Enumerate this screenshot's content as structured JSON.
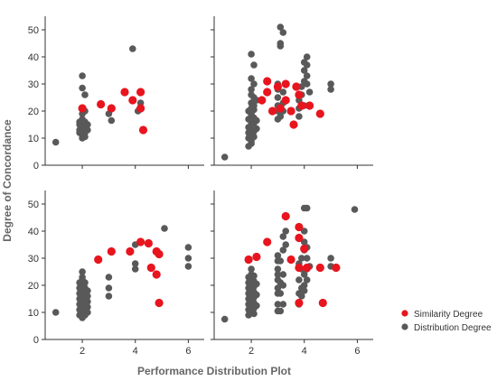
{
  "chart_data": {
    "type": "scatter",
    "xlabel": "Performance Distribution Plot",
    "ylabel": "Degree of Concordance",
    "xlim": [
      0.6,
      6.6
    ],
    "ylim": [
      0,
      55
    ],
    "x_ticks": [
      2,
      4,
      6
    ],
    "y_ticks": [
      0,
      10,
      20,
      30,
      40,
      50
    ],
    "grid": false,
    "legend_position": "right",
    "series_names": [
      "Similarity Degree",
      "Distribution Degree"
    ],
    "series_colors": [
      "#e8141e",
      "#595959"
    ],
    "panels": [
      {
        "row": 0,
        "col": 0,
        "series": [
          {
            "name": "Similarity Degree",
            "points": [
              [
                2.0,
                21
              ],
              [
                2.7,
                22.5
              ],
              [
                3.1,
                21
              ],
              [
                3.6,
                27
              ],
              [
                3.9,
                24
              ],
              [
                4.2,
                27
              ],
              [
                4.2,
                21
              ],
              [
                4.3,
                13
              ]
            ]
          },
          {
            "name": "Distribution Degree",
            "points": [
              [
                1.0,
                8.5
              ],
              [
                1.9,
                12
              ],
              [
                1.9,
                13
              ],
              [
                1.9,
                15
              ],
              [
                1.9,
                16
              ],
              [
                2.0,
                10
              ],
              [
                2.0,
                11
              ],
              [
                2.0,
                12.5
              ],
              [
                2.0,
                14
              ],
              [
                2.0,
                17
              ],
              [
                2.0,
                19
              ],
              [
                2.0,
                28.5
              ],
              [
                2.0,
                33
              ],
              [
                2.1,
                10.5
              ],
              [
                2.1,
                12
              ],
              [
                2.1,
                13.5
              ],
              [
                2.1,
                16
              ],
              [
                2.1,
                20
              ],
              [
                2.1,
                26
              ],
              [
                2.2,
                13
              ],
              [
                2.2,
                15
              ],
              [
                3.0,
                19
              ],
              [
                3.1,
                16.5
              ],
              [
                3.9,
                43
              ],
              [
                4.1,
                20
              ],
              [
                4.2,
                23
              ]
            ]
          }
        ]
      },
      {
        "row": 0,
        "col": 1,
        "series": [
          {
            "name": "Similarity Degree",
            "points": [
              [
                2.4,
                24
              ],
              [
                2.6,
                31
              ],
              [
                2.6,
                27
              ],
              [
                2.8,
                20
              ],
              [
                3.0,
                29
              ],
              [
                3.1,
                21
              ],
              [
                3.3,
                30
              ],
              [
                3.3,
                24
              ],
              [
                3.5,
                20
              ],
              [
                3.6,
                15
              ],
              [
                3.7,
                29
              ],
              [
                3.8,
                26
              ],
              [
                3.9,
                22
              ],
              [
                4.2,
                22
              ],
              [
                4.6,
                19
              ]
            ]
          },
          {
            "name": "Distribution Degree",
            "points": [
              [
                1.0,
                3
              ],
              [
                1.9,
                7
              ],
              [
                1.9,
                10
              ],
              [
                1.9,
                12
              ],
              [
                1.9,
                14
              ],
              [
                1.9,
                17
              ],
              [
                1.9,
                20
              ],
              [
                2.0,
                8
              ],
              [
                2.0,
                9
              ],
              [
                2.0,
                11
              ],
              [
                2.0,
                13
              ],
              [
                2.0,
                15
              ],
              [
                2.0,
                16
              ],
              [
                2.0,
                18
              ],
              [
                2.0,
                19
              ],
              [
                2.0,
                21
              ],
              [
                2.0,
                23
              ],
              [
                2.0,
                26
              ],
              [
                2.0,
                28
              ],
              [
                2.0,
                32
              ],
              [
                2.0,
                41
              ],
              [
                2.1,
                10.5
              ],
              [
                2.1,
                12.5
              ],
              [
                2.1,
                15.5
              ],
              [
                2.1,
                17.5
              ],
              [
                2.1,
                20.5
              ],
              [
                2.1,
                22
              ],
              [
                2.1,
                25
              ],
              [
                2.1,
                30
              ],
              [
                2.1,
                37
              ],
              [
                2.2,
                13.5
              ],
              [
                2.2,
                16.5
              ],
              [
                2.2,
                24
              ],
              [
                3.0,
                17
              ],
              [
                3.0,
                20
              ],
              [
                3.0,
                22
              ],
              [
                3.0,
                25
              ],
              [
                3.0,
                28
              ],
              [
                3.0,
                30
              ],
              [
                3.1,
                18
              ],
              [
                3.1,
                45
              ],
              [
                3.1,
                44
              ],
              [
                3.1,
                51
              ],
              [
                3.2,
                20
              ],
              [
                3.2,
                23
              ],
              [
                3.2,
                27
              ],
              [
                3.2,
                49
              ],
              [
                3.8,
                18
              ],
              [
                3.8,
                21
              ],
              [
                3.8,
                24
              ],
              [
                3.9,
                26
              ],
              [
                3.9,
                29
              ],
              [
                4.0,
                22
              ],
              [
                4.0,
                31
              ],
              [
                4.0,
                35
              ],
              [
                4.0,
                38
              ],
              [
                4.1,
                30
              ],
              [
                4.1,
                33
              ],
              [
                4.1,
                37
              ],
              [
                4.1,
                40
              ],
              [
                4.2,
                27
              ],
              [
                5.0,
                28
              ],
              [
                5.0,
                30
              ]
            ]
          }
        ]
      },
      {
        "row": 1,
        "col": 0,
        "series": [
          {
            "name": "Similarity Degree",
            "points": [
              [
                2.6,
                29.5
              ],
              [
                3.1,
                32.5
              ],
              [
                3.8,
                32.5
              ],
              [
                4.2,
                36
              ],
              [
                4.5,
                35.5
              ],
              [
                4.6,
                26.5
              ],
              [
                4.8,
                32.5
              ],
              [
                4.8,
                24
              ],
              [
                4.9,
                31.5
              ],
              [
                4.9,
                13.5
              ]
            ]
          },
          {
            "name": "Distribution Degree",
            "points": [
              [
                1.0,
                10
              ],
              [
                1.9,
                9
              ],
              [
                1.9,
                11
              ],
              [
                1.9,
                13
              ],
              [
                1.9,
                15
              ],
              [
                1.9,
                17
              ],
              [
                1.9,
                19
              ],
              [
                1.9,
                21
              ],
              [
                2.0,
                8
              ],
              [
                2.0,
                10
              ],
              [
                2.0,
                12
              ],
              [
                2.0,
                14
              ],
              [
                2.0,
                16
              ],
              [
                2.0,
                18
              ],
              [
                2.0,
                20
              ],
              [
                2.0,
                22
              ],
              [
                2.0,
                23
              ],
              [
                2.0,
                25
              ],
              [
                2.1,
                9
              ],
              [
                2.1,
                11
              ],
              [
                2.1,
                13
              ],
              [
                2.1,
                15
              ],
              [
                2.1,
                17
              ],
              [
                2.1,
                19
              ],
              [
                2.1,
                21
              ],
              [
                2.2,
                10
              ],
              [
                2.2,
                12
              ],
              [
                2.2,
                14
              ],
              [
                2.2,
                16
              ],
              [
                2.2,
                18
              ],
              [
                3.0,
                16
              ],
              [
                3.0,
                19
              ],
              [
                3.0,
                23
              ],
              [
                4.0,
                26
              ],
              [
                4.0,
                28
              ],
              [
                4.0,
                35
              ],
              [
                5.1,
                41
              ],
              [
                6.0,
                27
              ],
              [
                6.0,
                30
              ],
              [
                6.0,
                34
              ]
            ]
          }
        ]
      },
      {
        "row": 1,
        "col": 1,
        "series": [
          {
            "name": "Similarity Degree",
            "points": [
              [
                1.9,
                29.5
              ],
              [
                2.2,
                30.5
              ],
              [
                2.6,
                36
              ],
              [
                3.3,
                45.5
              ],
              [
                3.5,
                29.5
              ],
              [
                3.8,
                41.5
              ],
              [
                3.8,
                37.5
              ],
              [
                3.8,
                26.5
              ],
              [
                3.8,
                13.5
              ],
              [
                4.0,
                33.5
              ],
              [
                4.1,
                26.5
              ],
              [
                4.6,
                26.5
              ],
              [
                4.7,
                13.5
              ],
              [
                5.2,
                26.5
              ]
            ]
          },
          {
            "name": "Distribution Degree",
            "points": [
              [
                1.0,
                7.5
              ],
              [
                1.9,
                9
              ],
              [
                1.9,
                11
              ],
              [
                1.9,
                13
              ],
              [
                1.9,
                15
              ],
              [
                1.9,
                17
              ],
              [
                1.9,
                19
              ],
              [
                1.9,
                21
              ],
              [
                1.9,
                23
              ],
              [
                2.0,
                10
              ],
              [
                2.0,
                12
              ],
              [
                2.0,
                14
              ],
              [
                2.0,
                16
              ],
              [
                2.0,
                18
              ],
              [
                2.0,
                20
              ],
              [
                2.0,
                22
              ],
              [
                2.0,
                24
              ],
              [
                2.0,
                26
              ],
              [
                2.1,
                9.5
              ],
              [
                2.1,
                11.5
              ],
              [
                2.1,
                13.5
              ],
              [
                2.1,
                15.5
              ],
              [
                2.1,
                17.5
              ],
              [
                2.1,
                19.5
              ],
              [
                2.1,
                21.5
              ],
              [
                2.1,
                23.5
              ],
              [
                2.2,
                12.5
              ],
              [
                2.2,
                16.5
              ],
              [
                2.2,
                20.5
              ],
              [
                3.0,
                10.5
              ],
              [
                3.0,
                13
              ],
              [
                3.0,
                17
              ],
              [
                3.0,
                19
              ],
              [
                3.0,
                22
              ],
              [
                3.0,
                24
              ],
              [
                3.0,
                26
              ],
              [
                3.0,
                29
              ],
              [
                3.0,
                31
              ],
              [
                3.1,
                10.5
              ],
              [
                3.1,
                17
              ],
              [
                3.1,
                21
              ],
              [
                3.1,
                29
              ],
              [
                3.2,
                13
              ],
              [
                3.2,
                20
              ],
              [
                3.2,
                24
              ],
              [
                3.2,
                33
              ],
              [
                3.2,
                38
              ],
              [
                3.3,
                35
              ],
              [
                3.3,
                40
              ],
              [
                3.8,
                13
              ],
              [
                3.8,
                17
              ],
              [
                3.8,
                22
              ],
              [
                3.8,
                28
              ],
              [
                3.9,
                16
              ],
              [
                3.9,
                19
              ],
              [
                3.9,
                26
              ],
              [
                3.9,
                30
              ],
              [
                4.0,
                18
              ],
              [
                4.0,
                20
              ],
              [
                4.0,
                24
              ],
              [
                4.0,
                33
              ],
              [
                4.0,
                36
              ],
              [
                4.0,
                40
              ],
              [
                4.0,
                48.5
              ],
              [
                4.1,
                22
              ],
              [
                4.1,
                26
              ],
              [
                4.1,
                30
              ],
              [
                4.1,
                34
              ],
              [
                4.1,
                48.5
              ],
              [
                4.2,
                27
              ],
              [
                5.0,
                27
              ],
              [
                5.0,
                30
              ],
              [
                5.9,
                48
              ]
            ]
          }
        ]
      }
    ]
  }
}
